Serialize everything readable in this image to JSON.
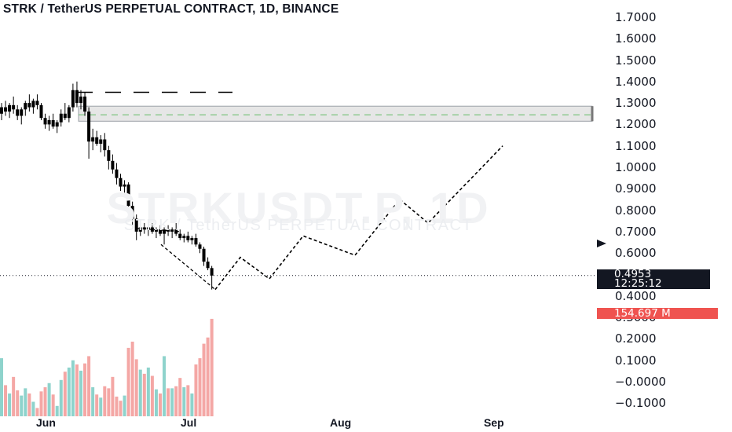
{
  "header": {
    "title": "STRK / TetherUS PERPETUAL CONTRACT, 1D, BINANCE"
  },
  "watermark": {
    "symbol": "STRKUSDT.P, 1D",
    "subtitle": "STRK / TetherUS PERPETUAL CONTRACT"
  },
  "price_axis": {
    "ticks": [
      "1.7000",
      "1.6000",
      "1.5000",
      "1.4000",
      "1.3000",
      "1.2000",
      "1.1000",
      "1.0000",
      "0.9000",
      "0.8000",
      "0.7000",
      "0.6000",
      "0.4000",
      "0.3000",
      "0.2000",
      "0.1000",
      "−0.0000",
      "−0.1000"
    ]
  },
  "time_axis": {
    "ticks": [
      "Jun",
      "Jul",
      "Aug",
      "Sep"
    ]
  },
  "last_price": {
    "value": "0.4953",
    "countdown": "12:25:12"
  },
  "volume_label": {
    "value": "154.697 M"
  },
  "colors": {
    "up": "#26a69a",
    "down": "#ef5350",
    "candle": "#000000",
    "zone": "#e6e6e6"
  },
  "chart_data": {
    "type": "candlestick",
    "interval": "1D",
    "ylim": [
      -0.13,
      1.76
    ],
    "ohlc": [
      [
        1.25,
        1.3,
        1.22,
        1.28
      ],
      [
        1.28,
        1.31,
        1.24,
        1.26
      ],
      [
        1.26,
        1.3,
        1.23,
        1.29
      ],
      [
        1.29,
        1.33,
        1.25,
        1.27
      ],
      [
        1.27,
        1.29,
        1.22,
        1.24
      ],
      [
        1.24,
        1.28,
        1.2,
        1.27
      ],
      [
        1.27,
        1.31,
        1.24,
        1.3
      ],
      [
        1.3,
        1.34,
        1.26,
        1.28
      ],
      [
        1.28,
        1.32,
        1.25,
        1.31
      ],
      [
        1.31,
        1.34,
        1.27,
        1.29
      ],
      [
        1.29,
        1.3,
        1.22,
        1.23
      ],
      [
        1.23,
        1.25,
        1.18,
        1.2
      ],
      [
        1.2,
        1.24,
        1.17,
        1.22
      ],
      [
        1.22,
        1.25,
        1.18,
        1.19
      ],
      [
        1.19,
        1.22,
        1.16,
        1.21
      ],
      [
        1.21,
        1.27,
        1.19,
        1.25
      ],
      [
        1.25,
        1.3,
        1.22,
        1.23
      ],
      [
        1.23,
        1.29,
        1.21,
        1.28
      ],
      [
        1.28,
        1.39,
        1.26,
        1.36
      ],
      [
        1.36,
        1.4,
        1.28,
        1.3
      ],
      [
        1.3,
        1.36,
        1.27,
        1.33
      ],
      [
        1.33,
        1.35,
        1.24,
        1.26
      ],
      [
        1.26,
        1.28,
        1.04,
        1.12
      ],
      [
        1.12,
        1.18,
        1.08,
        1.14
      ],
      [
        1.14,
        1.17,
        1.1,
        1.11
      ],
      [
        1.11,
        1.15,
        1.07,
        1.13
      ],
      [
        1.13,
        1.16,
        1.05,
        1.08
      ],
      [
        1.08,
        1.1,
        0.99,
        1.03
      ],
      [
        1.03,
        1.06,
        0.97,
        0.99
      ],
      [
        0.99,
        1.02,
        0.92,
        0.95
      ],
      [
        0.95,
        0.97,
        0.89,
        0.91
      ],
      [
        0.91,
        0.94,
        0.86,
        0.92
      ],
      [
        0.92,
        0.93,
        0.8,
        0.82
      ],
      [
        0.82,
        0.84,
        0.73,
        0.76
      ],
      [
        0.76,
        0.78,
        0.66,
        0.7
      ],
      [
        0.7,
        0.73,
        0.68,
        0.72
      ],
      [
        0.72,
        0.74,
        0.69,
        0.71
      ],
      [
        0.71,
        0.73,
        0.68,
        0.72
      ],
      [
        0.72,
        0.74,
        0.69,
        0.7
      ],
      [
        0.7,
        0.72,
        0.67,
        0.71
      ],
      [
        0.71,
        0.73,
        0.68,
        0.69
      ],
      [
        0.69,
        0.72,
        0.64,
        0.71
      ],
      [
        0.71,
        0.73,
        0.68,
        0.7
      ],
      [
        0.7,
        0.72,
        0.67,
        0.71
      ],
      [
        0.71,
        0.74,
        0.68,
        0.69
      ],
      [
        0.69,
        0.71,
        0.66,
        0.67
      ],
      [
        0.67,
        0.69,
        0.65,
        0.68
      ],
      [
        0.68,
        0.7,
        0.65,
        0.66
      ],
      [
        0.66,
        0.68,
        0.64,
        0.67
      ],
      [
        0.67,
        0.69,
        0.63,
        0.64
      ],
      [
        0.64,
        0.65,
        0.6,
        0.62
      ],
      [
        0.62,
        0.63,
        0.54,
        0.56
      ],
      [
        0.56,
        0.58,
        0.52,
        0.53
      ],
      [
        0.53,
        0.54,
        0.43,
        0.4953
      ]
    ],
    "volume_relative": [
      0.56,
      0.3,
      0.22,
      0.38,
      0.25,
      0.2,
      0.27,
      0.22,
      0.14,
      0.08,
      0.24,
      0.28,
      0.32,
      0.21,
      0.1,
      0.35,
      0.43,
      0.47,
      0.54,
      0.5,
      0.44,
      0.51,
      0.58,
      0.28,
      0.21,
      0.18,
      0.29,
      0.27,
      0.38,
      0.19,
      0.15,
      0.2,
      0.66,
      0.72,
      0.55,
      0.45,
      0.41,
      0.47,
      0.39,
      0.26,
      0.22,
      0.58,
      0.27,
      0.27,
      0.29,
      0.37,
      0.28,
      0.3,
      0.22,
      0.5,
      0.56,
      0.7,
      0.76,
      0.94
    ],
    "volume_last": "154.697 M",
    "resistance_zone": [
      1.215,
      1.285
    ],
    "resistance_dashed": 1.245,
    "high_dashed": 1.35,
    "projection_path": [
      [
        0.43,
        "Jul 3"
      ],
      [
        0.58,
        "Jul 8"
      ],
      [
        0.48,
        "Jul 12"
      ],
      [
        0.68,
        "Jul 17"
      ],
      [
        0.59,
        "Jul 25"
      ],
      [
        0.85,
        "Jul 31"
      ],
      [
        0.74,
        "Aug 4"
      ],
      [
        1.1,
        "Aug 22"
      ]
    ]
  }
}
